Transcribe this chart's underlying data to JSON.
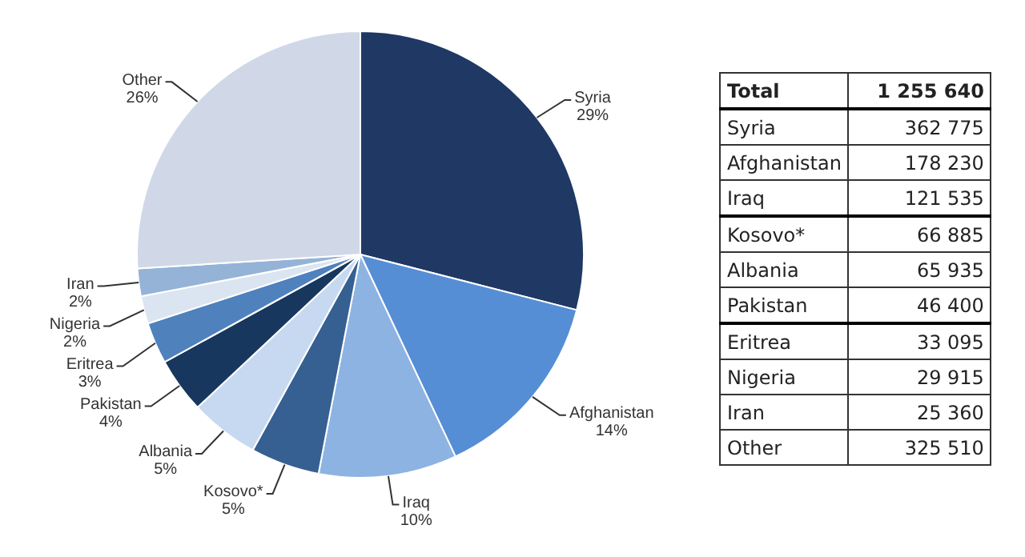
{
  "chart_data": {
    "type": "pie",
    "categories": [
      "Syria",
      "Afghanistan",
      "Iraq",
      "Kosovo*",
      "Albania",
      "Pakistan",
      "Eritrea",
      "Nigeria",
      "Iran",
      "Other"
    ],
    "values": [
      29,
      14,
      10,
      5,
      5,
      4,
      3,
      2,
      2,
      26
    ],
    "colors": [
      "#1f3864",
      "#558ed5",
      "#8db3e2",
      "#366092",
      "#c6d9f1",
      "#17375e",
      "#4f81bd",
      "#dbe5f1",
      "#95b3d7",
      "#d0d8e8"
    ],
    "value_labels": [
      "29%",
      "14%",
      "10%",
      "5%",
      "5%",
      "4%",
      "3%",
      "2%",
      "2%",
      "26%"
    ],
    "annotations": [
      "Total",
      "1 255 640",
      "362 775",
      "178 230",
      "121 535",
      "66 885",
      "65 935",
      "46 400",
      "33 095",
      "29 915",
      "25 360",
      "325 510"
    ],
    "legend": false
  }
}
